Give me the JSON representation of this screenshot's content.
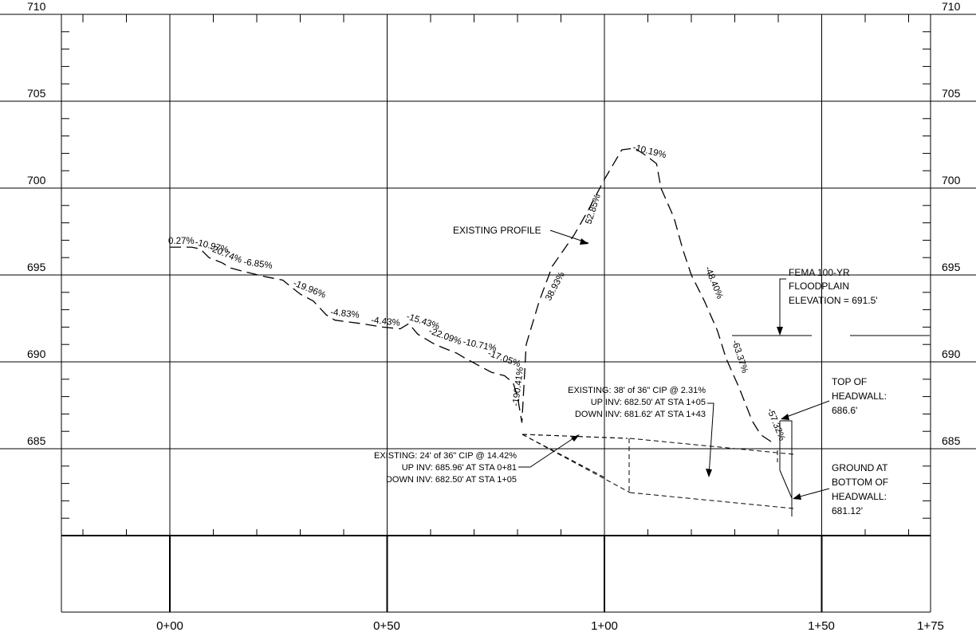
{
  "elevation_labels": [
    "710",
    "705",
    "700",
    "695",
    "690",
    "685"
  ],
  "station_labels": [
    "0+00",
    "0+50",
    "1+00",
    "1+50",
    "1+75"
  ],
  "grades": [
    "0.27%",
    "-10.97%",
    "-20.74%",
    "-6.85%",
    "-19.96%",
    "-4.83%",
    "-4.43%",
    "-15.43%",
    "-22.09%",
    "-10.71%",
    "-17.05%",
    "-190.41%",
    "38.93%",
    "52.85%",
    "-10.19%",
    "-48.40%",
    "-63.37%",
    "-57.32%"
  ],
  "existing_profile_label": "EXISTING PROFILE",
  "fema_label": [
    "FEMA 100-YR",
    "FLOODPLAIN",
    "ELEVATION = 691.5'"
  ],
  "pipe1_label": [
    "EXISTING: 24' of 36\" CIP @ 14.42%",
    "UP INV: 685.96' AT STA 0+81",
    "DOWN INV: 682.50' AT STA 1+05"
  ],
  "pipe2_label": [
    "EXISTING: 38' of 36\" CIP @ 2.31%",
    "UP INV: 682.50' AT STA 1+05",
    "DOWN INV: 681.62' AT STA 1+43"
  ],
  "headwall_top_label": [
    "TOP OF",
    "HEADWALL:",
    "686.6'"
  ],
  "headwall_ground_label": [
    "GROUND AT",
    "BOTTOM OF",
    "HEADWALL:",
    "681.12'"
  ],
  "chart_data": {
    "type": "profile",
    "xlabel": "",
    "ylabel": "",
    "x_ticks": [
      "0+00",
      "0+50",
      "1+00",
      "1+50",
      "1+75"
    ],
    "y_ticks": [
      710,
      705,
      700,
      695,
      690,
      685
    ],
    "xlim_station_ft": [
      -25,
      175
    ],
    "ylim_elevation_ft": [
      680,
      710
    ],
    "existing_ground": [
      [
        0,
        696.6
      ],
      [
        5,
        696.6
      ],
      [
        7,
        696.5
      ],
      [
        9,
        696.0
      ],
      [
        12,
        695.7
      ],
      [
        14,
        695.4
      ],
      [
        17,
        695.2
      ],
      [
        22,
        694.9
      ],
      [
        26,
        694.7
      ],
      [
        28,
        694.3
      ],
      [
        30,
        693.9
      ],
      [
        33,
        693.5
      ],
      [
        36,
        692.7
      ],
      [
        38,
        692.4
      ],
      [
        44,
        692.2
      ],
      [
        49,
        692.0
      ],
      [
        53,
        691.9
      ],
      [
        55,
        692.2
      ],
      [
        57,
        691.6
      ],
      [
        59,
        691.3
      ],
      [
        61,
        691.0
      ],
      [
        63,
        690.8
      ],
      [
        66,
        690.5
      ],
      [
        68,
        690.2
      ],
      [
        71,
        689.8
      ],
      [
        74,
        689.4
      ],
      [
        77,
        689.2
      ],
      [
        79,
        688.8
      ],
      [
        80,
        688.0
      ],
      [
        81,
        686.5
      ],
      [
        82,
        691.0
      ],
      [
        85,
        693.5
      ],
      [
        88,
        695.5
      ],
      [
        93,
        697.3
      ],
      [
        96,
        698.6
      ],
      [
        100,
        700.5
      ],
      [
        104,
        702.2
      ],
      [
        107,
        702.3
      ],
      [
        110,
        701.8
      ],
      [
        112,
        701.4
      ],
      [
        113,
        700.0
      ],
      [
        116,
        698.3
      ],
      [
        118,
        696.5
      ],
      [
        120,
        695.0
      ],
      [
        123,
        693.5
      ],
      [
        126,
        691.8
      ],
      [
        128,
        690.2
      ],
      [
        131,
        688.5
      ],
      [
        134,
        686.6
      ],
      [
        136,
        685.8
      ],
      [
        139,
        685.3
      ]
    ],
    "pipes": [
      {
        "name": "36\" CIP",
        "length_ft": 24,
        "slope_pct": 14.42,
        "up_station": 81,
        "up_invert": 685.96,
        "down_station": 105,
        "down_invert": 682.5
      },
      {
        "name": "36\" CIP",
        "length_ft": 38,
        "slope_pct": 2.31,
        "up_station": 105,
        "up_invert": 682.5,
        "down_station": 143,
        "down_invert": 681.62
      }
    ],
    "fema_floodplain_elevation": 691.5,
    "headwall": {
      "station": 143,
      "top": 686.6,
      "ground": 681.12
    }
  }
}
